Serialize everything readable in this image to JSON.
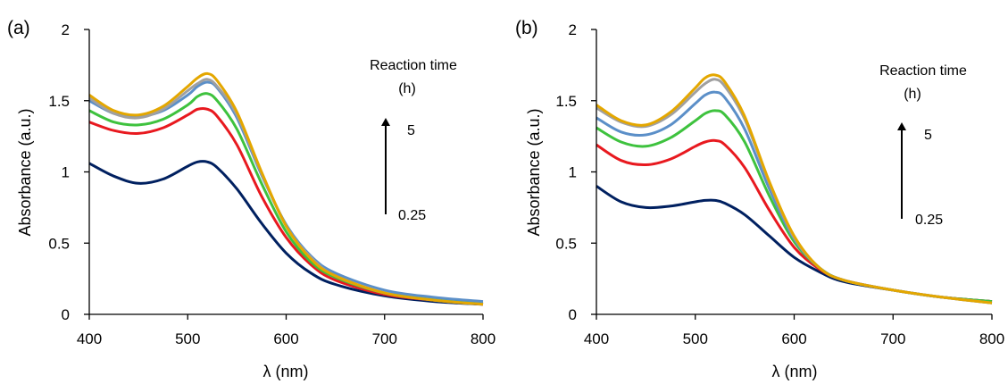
{
  "chart_data": [
    {
      "type": "line",
      "panel_label": "(a)",
      "xlabel": "λ (nm)",
      "ylabel": "Absorbance (a.u.)",
      "xlim": [
        400,
        800
      ],
      "ylim": [
        0,
        2
      ],
      "xticks": [
        "400",
        "500",
        "600",
        "700",
        "800"
      ],
      "yticks": [
        "0",
        "0.5",
        "1",
        "1.5",
        "2"
      ],
      "grid": false,
      "annotation": {
        "title_line1": "Reaction time",
        "title_line2": "(h)",
        "top": "5",
        "bottom": "0.25"
      },
      "x": [
        400,
        425,
        450,
        475,
        500,
        510,
        520,
        530,
        550,
        575,
        600,
        625,
        650,
        700,
        750,
        800
      ],
      "series": [
        {
          "color": "#002060",
          "values": [
            1.06,
            0.97,
            0.92,
            0.95,
            1.04,
            1.07,
            1.07,
            1.03,
            0.88,
            0.64,
            0.43,
            0.29,
            0.21,
            0.13,
            0.09,
            0.07
          ]
        },
        {
          "color": "#e8191f",
          "values": [
            1.35,
            1.29,
            1.27,
            1.31,
            1.4,
            1.44,
            1.44,
            1.39,
            1.19,
            0.83,
            0.54,
            0.35,
            0.24,
            0.14,
            0.1,
            0.07
          ]
        },
        {
          "color": "#3ec23e",
          "values": [
            1.43,
            1.35,
            1.33,
            1.37,
            1.47,
            1.53,
            1.55,
            1.5,
            1.3,
            0.92,
            0.58,
            0.37,
            0.26,
            0.15,
            0.11,
            0.08
          ]
        },
        {
          "color": "#5b8fc8",
          "values": [
            1.5,
            1.41,
            1.39,
            1.43,
            1.54,
            1.6,
            1.63,
            1.59,
            1.38,
            0.98,
            0.63,
            0.41,
            0.29,
            0.17,
            0.12,
            0.09
          ]
        },
        {
          "color": "#a0a0a0",
          "values": [
            1.52,
            1.41,
            1.38,
            1.44,
            1.57,
            1.62,
            1.65,
            1.6,
            1.4,
            0.99,
            0.62,
            0.4,
            0.27,
            0.15,
            0.1,
            0.07
          ]
        },
        {
          "color": "#e4a700",
          "values": [
            1.54,
            1.43,
            1.4,
            1.46,
            1.6,
            1.66,
            1.69,
            1.64,
            1.42,
            1.0,
            0.62,
            0.39,
            0.27,
            0.15,
            0.1,
            0.07
          ]
        }
      ]
    },
    {
      "type": "line",
      "panel_label": "(b)",
      "xlabel": "λ (nm)",
      "ylabel": "Absorbance (a.u.)",
      "xlim": [
        400,
        800
      ],
      "ylim": [
        0,
        2
      ],
      "xticks": [
        "400",
        "500",
        "600",
        "700",
        "800"
      ],
      "yticks": [
        "0",
        "0.5",
        "1",
        "1.5",
        "2"
      ],
      "grid": false,
      "annotation": {
        "title_line1": "Reaction time",
        "title_line2": "(h)",
        "top": "5",
        "bottom": "0.25"
      },
      "x": [
        400,
        425,
        450,
        475,
        500,
        510,
        520,
        530,
        550,
        575,
        600,
        625,
        650,
        700,
        750,
        800
      ],
      "series": [
        {
          "color": "#002060",
          "values": [
            0.9,
            0.79,
            0.75,
            0.76,
            0.79,
            0.8,
            0.8,
            0.78,
            0.7,
            0.55,
            0.4,
            0.3,
            0.23,
            0.17,
            0.12,
            0.09
          ]
        },
        {
          "color": "#e8191f",
          "values": [
            1.19,
            1.08,
            1.05,
            1.09,
            1.18,
            1.21,
            1.22,
            1.19,
            1.03,
            0.73,
            0.47,
            0.32,
            0.24,
            0.17,
            0.12,
            0.09
          ]
        },
        {
          "color": "#3ec23e",
          "values": [
            1.31,
            1.21,
            1.18,
            1.24,
            1.36,
            1.41,
            1.43,
            1.4,
            1.21,
            0.83,
            0.51,
            0.33,
            0.24,
            0.17,
            0.12,
            0.09
          ]
        },
        {
          "color": "#5b8fc8",
          "values": [
            1.38,
            1.28,
            1.26,
            1.33,
            1.48,
            1.54,
            1.56,
            1.52,
            1.3,
            0.88,
            0.53,
            0.33,
            0.24,
            0.17,
            0.12,
            0.08
          ]
        },
        {
          "color": "#a0a0a0",
          "values": [
            1.45,
            1.35,
            1.32,
            1.4,
            1.56,
            1.62,
            1.65,
            1.6,
            1.37,
            0.92,
            0.54,
            0.33,
            0.24,
            0.17,
            0.12,
            0.08
          ]
        },
        {
          "color": "#e4a700",
          "values": [
            1.47,
            1.36,
            1.33,
            1.42,
            1.59,
            1.66,
            1.68,
            1.63,
            1.39,
            0.93,
            0.55,
            0.33,
            0.24,
            0.17,
            0.12,
            0.08
          ]
        }
      ]
    }
  ]
}
